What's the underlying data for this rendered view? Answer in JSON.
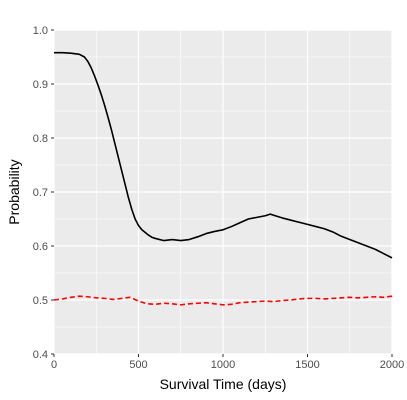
{
  "chart_data": {
    "type": "line",
    "title": "",
    "xlabel": "Survival Time (days)",
    "ylabel": "Probability",
    "xlim": [
      0,
      2000
    ],
    "ylim": [
      0.4,
      1.0
    ],
    "x_ticks": [
      "0",
      "500",
      "1000",
      "1500",
      "2000"
    ],
    "y_ticks": [
      "0.4",
      "0.5",
      "0.6",
      "0.7",
      "0.8",
      "0.9",
      "1.0"
    ],
    "x_tick_values": [
      0,
      500,
      1000,
      1500,
      2000
    ],
    "y_tick_values": [
      0.4,
      0.5,
      0.6,
      0.7,
      0.8,
      0.9,
      1.0
    ],
    "grid": true,
    "legend": "none",
    "colors": {
      "panel": "#ebebeb",
      "grid": "#ffffff",
      "solid": "#000000",
      "dashed": "#ff0000"
    },
    "series": [
      {
        "style": "solid",
        "color": "#000000",
        "x": [
          0,
          50,
          100,
          150,
          180,
          200,
          220,
          240,
          260,
          280,
          300,
          320,
          340,
          360,
          380,
          400,
          420,
          440,
          460,
          480,
          500,
          520,
          540,
          560,
          580,
          600,
          650,
          700,
          750,
          800,
          850,
          900,
          950,
          1000,
          1050,
          1100,
          1150,
          1200,
          1250,
          1280,
          1300,
          1350,
          1400,
          1450,
          1500,
          1550,
          1600,
          1650,
          1700,
          1750,
          1800,
          1850,
          1900,
          1950,
          2000
        ],
        "y": [
          0.958,
          0.958,
          0.957,
          0.955,
          0.95,
          0.942,
          0.93,
          0.915,
          0.898,
          0.88,
          0.86,
          0.838,
          0.815,
          0.79,
          0.765,
          0.74,
          0.715,
          0.69,
          0.668,
          0.65,
          0.638,
          0.63,
          0.625,
          0.62,
          0.616,
          0.614,
          0.61,
          0.612,
          0.61,
          0.612,
          0.617,
          0.623,
          0.627,
          0.63,
          0.636,
          0.643,
          0.65,
          0.653,
          0.656,
          0.659,
          0.657,
          0.652,
          0.648,
          0.644,
          0.64,
          0.636,
          0.632,
          0.626,
          0.618,
          0.612,
          0.606,
          0.6,
          0.594,
          0.586,
          0.578
        ]
      },
      {
        "style": "dashed",
        "color": "#ff0000",
        "x": [
          0,
          50,
          100,
          150,
          200,
          250,
          300,
          350,
          400,
          450,
          500,
          550,
          600,
          650,
          700,
          750,
          800,
          850,
          900,
          950,
          1000,
          1050,
          1100,
          1150,
          1200,
          1250,
          1300,
          1350,
          1400,
          1450,
          1500,
          1550,
          1600,
          1650,
          1700,
          1750,
          1800,
          1850,
          1900,
          1950,
          2000
        ],
        "y": [
          0.5,
          0.502,
          0.505,
          0.507,
          0.506,
          0.504,
          0.503,
          0.501,
          0.503,
          0.505,
          0.498,
          0.493,
          0.492,
          0.494,
          0.493,
          0.491,
          0.493,
          0.494,
          0.495,
          0.493,
          0.491,
          0.492,
          0.495,
          0.496,
          0.497,
          0.498,
          0.497,
          0.499,
          0.5,
          0.502,
          0.503,
          0.503,
          0.502,
          0.503,
          0.504,
          0.505,
          0.504,
          0.505,
          0.506,
          0.505,
          0.507
        ]
      }
    ]
  }
}
